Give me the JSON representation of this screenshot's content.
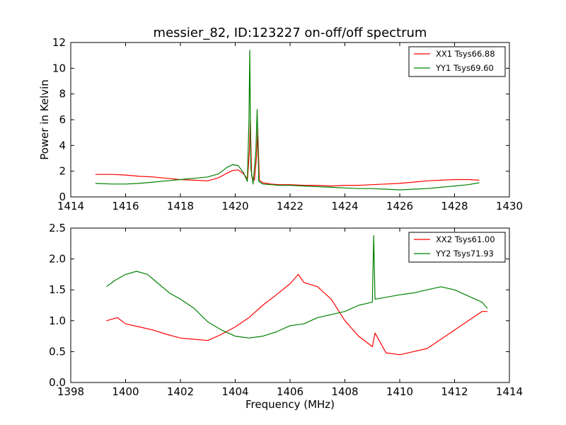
{
  "chart_data": [
    {
      "type": "line",
      "title": "messier_82, ID:123227 on-off/off spectrum",
      "xlabel": "",
      "ylabel": "Power in Kelvin",
      "xlim": [
        1414,
        1430
      ],
      "ylim": [
        0,
        12
      ],
      "xticks": [
        "1414",
        "1416",
        "1418",
        "1420",
        "1422",
        "1424",
        "1426",
        "1428",
        "1430"
      ],
      "yticks": [
        "0",
        "2",
        "4",
        "6",
        "8",
        "10",
        "12"
      ],
      "xtick_values": [
        1414,
        1416,
        1418,
        1420,
        1422,
        1424,
        1426,
        1428,
        1430
      ],
      "ytick_values": [
        0,
        2,
        4,
        6,
        8,
        10,
        12
      ],
      "legend_position": "top-right",
      "series": [
        {
          "name": "XX1 Tsys66.88",
          "color": "#ff0000",
          "x": [
            1414.9,
            1415.5,
            1416.0,
            1416.5,
            1417.0,
            1417.5,
            1418.0,
            1418.5,
            1419.0,
            1419.4,
            1419.7,
            1419.9,
            1420.1,
            1420.3,
            1420.45,
            1420.52,
            1420.55,
            1420.6,
            1420.7,
            1420.78,
            1420.82,
            1420.88,
            1421.0,
            1421.3,
            1421.6,
            1422.0,
            1422.5,
            1423.0,
            1423.5,
            1424.0,
            1424.5,
            1425.0,
            1425.5,
            1426.0,
            1426.5,
            1427.0,
            1427.5,
            1428.0,
            1428.5,
            1428.9
          ],
          "y": [
            1.75,
            1.75,
            1.7,
            1.6,
            1.55,
            1.45,
            1.35,
            1.3,
            1.25,
            1.5,
            1.85,
            2.05,
            2.1,
            1.8,
            1.4,
            3.6,
            5.9,
            1.6,
            1.3,
            3.2,
            5.3,
            1.3,
            1.1,
            1.0,
            0.95,
            0.95,
            0.9,
            0.9,
            0.85,
            0.9,
            0.9,
            0.95,
            1.0,
            1.05,
            1.15,
            1.25,
            1.3,
            1.35,
            1.35,
            1.3
          ]
        },
        {
          "name": "YY1 Tsys69.60",
          "color": "#008000",
          "x": [
            1414.9,
            1415.5,
            1416.0,
            1416.5,
            1417.0,
            1417.5,
            1418.0,
            1418.5,
            1419.0,
            1419.4,
            1419.7,
            1419.9,
            1420.1,
            1420.3,
            1420.44,
            1420.5,
            1420.53,
            1420.57,
            1420.65,
            1420.75,
            1420.8,
            1420.86,
            1421.0,
            1421.3,
            1421.6,
            1422.0,
            1422.5,
            1423.0,
            1423.5,
            1424.0,
            1424.5,
            1425.0,
            1425.5,
            1426.0,
            1426.5,
            1427.0,
            1427.5,
            1428.0,
            1428.5,
            1428.9
          ],
          "y": [
            1.05,
            1.0,
            1.0,
            1.05,
            1.15,
            1.25,
            1.35,
            1.45,
            1.55,
            1.8,
            2.3,
            2.5,
            2.45,
            1.9,
            1.2,
            6.0,
            11.4,
            2.2,
            1.0,
            3.5,
            6.8,
            1.2,
            1.0,
            0.95,
            0.9,
            0.9,
            0.85,
            0.8,
            0.75,
            0.7,
            0.65,
            0.65,
            0.6,
            0.55,
            0.6,
            0.65,
            0.75,
            0.85,
            0.95,
            1.1
          ]
        }
      ]
    },
    {
      "type": "line",
      "title": "",
      "xlabel": "Frequency (MHz)",
      "ylabel": "",
      "xlim": [
        1398,
        1414
      ],
      "ylim": [
        0.0,
        2.5
      ],
      "xticks": [
        "1398",
        "1400",
        "1402",
        "1404",
        "1406",
        "1408",
        "1410",
        "1412",
        "1414"
      ],
      "yticks": [
        "0.0",
        "0.5",
        "1.0",
        "1.5",
        "2.0",
        "2.5"
      ],
      "xtick_values": [
        1398,
        1400,
        1402,
        1404,
        1406,
        1408,
        1410,
        1412,
        1414
      ],
      "ytick_values": [
        0.0,
        0.5,
        1.0,
        1.5,
        2.0,
        2.5
      ],
      "legend_position": "top-right",
      "series": [
        {
          "name": "XX2 Tsys61.00",
          "color": "#ff0000",
          "x": [
            1399.3,
            1399.7,
            1400.0,
            1400.5,
            1401.0,
            1401.5,
            1402.0,
            1402.5,
            1403.0,
            1403.5,
            1404.0,
            1404.5,
            1405.0,
            1405.5,
            1406.0,
            1406.3,
            1406.5,
            1407.0,
            1407.5,
            1408.0,
            1408.5,
            1409.0,
            1409.1,
            1409.5,
            1410.0,
            1410.5,
            1411.0,
            1411.5,
            1412.0,
            1412.5,
            1413.0,
            1413.2
          ],
          "y": [
            1.0,
            1.05,
            0.95,
            0.9,
            0.85,
            0.78,
            0.72,
            0.7,
            0.68,
            0.78,
            0.9,
            1.05,
            1.25,
            1.42,
            1.6,
            1.75,
            1.62,
            1.55,
            1.35,
            1.0,
            0.75,
            0.58,
            0.8,
            0.48,
            0.45,
            0.5,
            0.55,
            0.7,
            0.85,
            1.0,
            1.15,
            1.15
          ]
        },
        {
          "name": "YY2 Tsys71.93",
          "color": "#008000",
          "x": [
            1399.3,
            1399.6,
            1400.0,
            1400.4,
            1400.8,
            1401.2,
            1401.6,
            1402.0,
            1402.5,
            1403.0,
            1403.5,
            1404.0,
            1404.5,
            1405.0,
            1405.5,
            1406.0,
            1406.5,
            1407.0,
            1407.5,
            1408.0,
            1408.5,
            1409.0,
            1409.05,
            1409.1,
            1409.5,
            1410.0,
            1410.5,
            1411.0,
            1411.5,
            1412.0,
            1412.5,
            1413.0,
            1413.2
          ],
          "y": [
            1.55,
            1.65,
            1.75,
            1.8,
            1.75,
            1.6,
            1.45,
            1.35,
            1.2,
            0.98,
            0.85,
            0.75,
            0.72,
            0.75,
            0.82,
            0.92,
            0.95,
            1.05,
            1.1,
            1.15,
            1.25,
            1.3,
            2.38,
            1.35,
            1.38,
            1.42,
            1.45,
            1.5,
            1.55,
            1.5,
            1.4,
            1.3,
            1.2
          ]
        }
      ]
    }
  ]
}
